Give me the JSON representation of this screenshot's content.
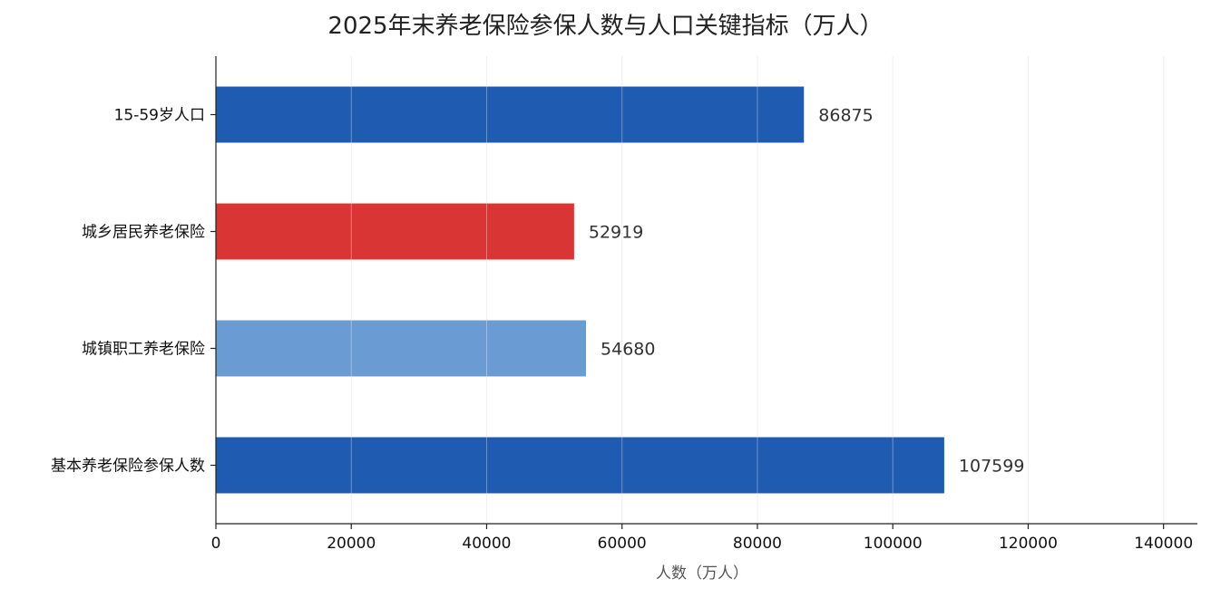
{
  "chart_data": {
    "type": "bar",
    "orientation": "horizontal",
    "title": "2025年末养老保险参保人数与人口关键指标（万人）",
    "xlabel": "人数（万人）",
    "ylabel": "",
    "categories": [
      "15-59岁人口",
      "城乡居民养老保险",
      "城镇职工养老保险",
      "基本养老保险参保人数"
    ],
    "values": [
      86875,
      52919,
      54680,
      107599
    ],
    "bar_colors": [
      "#1f5bb0",
      "#d93535",
      "#6b9bd3",
      "#1f5bb0"
    ],
    "value_labels": [
      "86875",
      "52919",
      "54680",
      "107599"
    ],
    "xlim": [
      0,
      145000
    ],
    "x_ticks": [
      0,
      20000,
      40000,
      60000,
      80000,
      100000,
      120000,
      140000
    ],
    "x_tick_labels": [
      "0",
      "20000",
      "40000",
      "60000",
      "80000",
      "100000",
      "120000",
      "140000"
    ],
    "grid": "vertical",
    "legend": "none"
  }
}
